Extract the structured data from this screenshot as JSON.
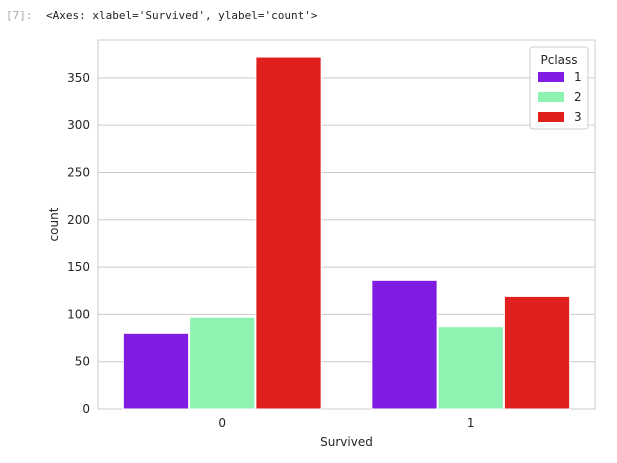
{
  "cell": {
    "prompt": "[7]:",
    "repr": "<Axes: xlabel='Survived', ylabel='count'>"
  },
  "chart_data": {
    "type": "bar",
    "title": "",
    "xlabel": "Survived",
    "ylabel": "count",
    "categories": [
      "0",
      "1"
    ],
    "ylim": [
      0,
      390
    ],
    "yticks": [
      0,
      50,
      100,
      150,
      200,
      250,
      300,
      350
    ],
    "grid": true,
    "legend_title": "Pclass",
    "legend_position": "top-right",
    "series": [
      {
        "name": "1",
        "color": "#7f1ee2",
        "values": [
          80,
          136
        ]
      },
      {
        "name": "2",
        "color": "#8ef3b1",
        "values": [
          97,
          87
        ]
      },
      {
        "name": "3",
        "color": "#e01f1f",
        "values": [
          372,
          119
        ]
      }
    ]
  }
}
